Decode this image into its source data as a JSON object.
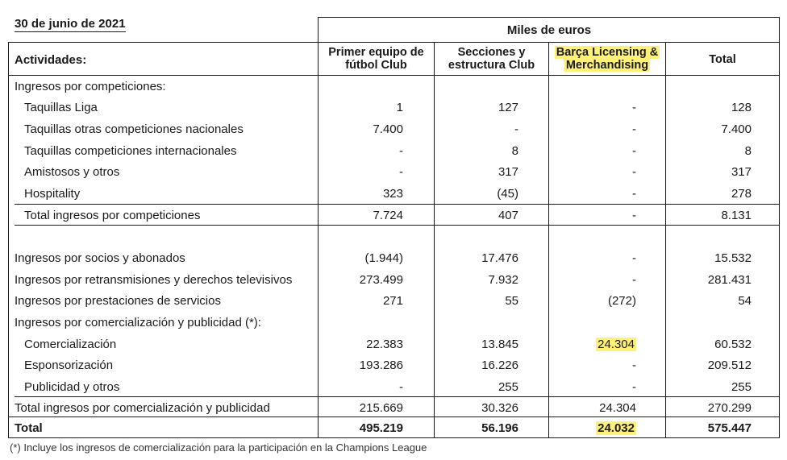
{
  "title": "30 de junio de 2021",
  "units": "Miles de euros",
  "header": {
    "activities": "Actividades:",
    "columns": [
      {
        "line1": "Primer equipo de",
        "line2": "fútbol Club"
      },
      {
        "line1": "Secciones y",
        "line2": "estructura Club"
      },
      {
        "line1": "Barça Licensing &",
        "line2": "Merchandising"
      },
      {
        "line1": "Total",
        "line2": ""
      }
    ]
  },
  "rows": [
    {
      "label": "Ingresos por competiciones:",
      "values": [
        "",
        "",
        "",
        ""
      ]
    },
    {
      "label": "Taquillas Liga",
      "values": [
        "1",
        "127",
        "-",
        "128"
      ]
    },
    {
      "label": "Taquillas otras competiciones nacionales",
      "values": [
        "7.400",
        "-",
        "-",
        "7.400"
      ]
    },
    {
      "label": "Taquillas competiciones internacionales",
      "values": [
        "-",
        "8",
        "-",
        "8"
      ]
    },
    {
      "label": "Amistosos y otros",
      "values": [
        "-",
        "317",
        "-",
        "317"
      ]
    },
    {
      "label": "Hospitality",
      "values": [
        "323",
        "(45)",
        "-",
        "278"
      ]
    },
    {
      "label": "Total ingresos por competiciones",
      "values": [
        "7.724",
        "407",
        "-",
        "8.131"
      ]
    },
    {
      "label": "Ingresos por socios y abonados",
      "values": [
        "(1.944)",
        "17.476",
        "-",
        "15.532"
      ]
    },
    {
      "label": "Ingresos por retransmisiones y derechos televisivos",
      "values": [
        "273.499",
        "7.932",
        "-",
        "281.431"
      ]
    },
    {
      "label": "Ingresos por prestaciones de servicios",
      "values": [
        "271",
        "55",
        "(272)",
        "54"
      ]
    },
    {
      "label": "Ingresos por comercialización y publicidad (*):",
      "values": [
        "",
        "",
        "",
        ""
      ]
    },
    {
      "label": "Comercialización",
      "values": [
        "22.383",
        "13.845",
        "24.304",
        "60.532"
      ]
    },
    {
      "label": "Esponsorización",
      "values": [
        "193.286",
        "16.226",
        "-",
        "209.512"
      ]
    },
    {
      "label": "Publicidad y otros",
      "values": [
        "-",
        "255",
        "-",
        "255"
      ]
    },
    {
      "label": "Total ingresos por comercialización y publicidad",
      "values": [
        "215.669",
        "30.326",
        "24.304",
        "270.299"
      ]
    },
    {
      "label": "Total",
      "values": [
        "495.219",
        "56.196",
        "24.032",
        "575.447"
      ]
    }
  ],
  "highlight_color": "#fff176",
  "footnote": "(*) Incluye los ingresos de comercialización para la participación en la Champions League"
}
